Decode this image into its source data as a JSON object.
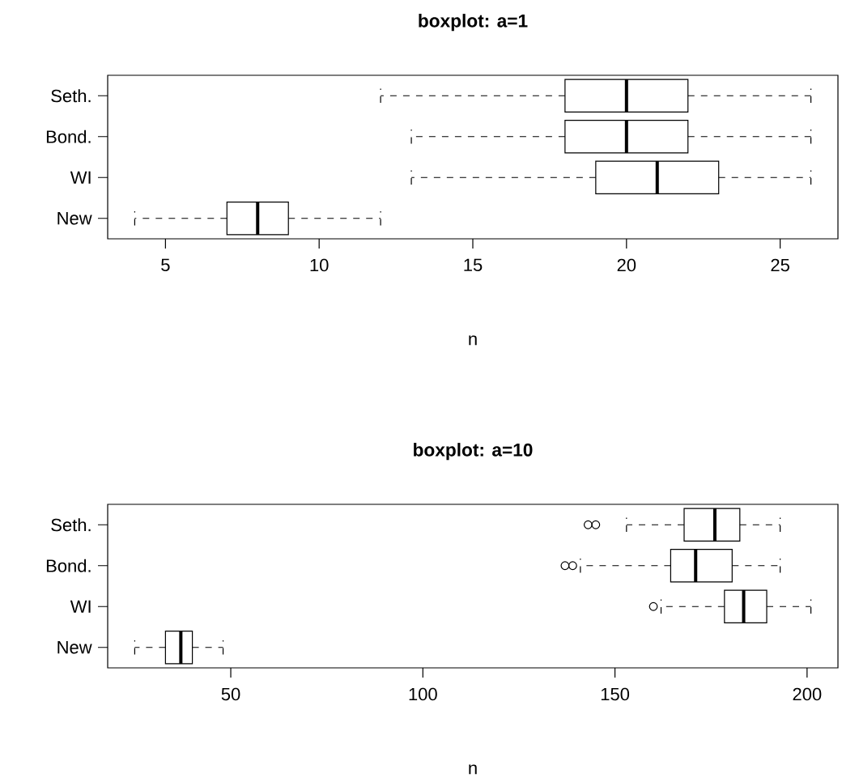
{
  "chart_data": [
    {
      "type": "box",
      "title": "boxplot: a=1",
      "xlabel": "n",
      "orientation": "horizontal",
      "categories": [
        "Seth.",
        "Bond.",
        "WI",
        "New"
      ],
      "boxes": [
        {
          "low": 12,
          "q1": 18,
          "median": 20,
          "q3": 22,
          "high": 26
        },
        {
          "low": 13,
          "q1": 18,
          "median": 20,
          "q3": 22,
          "high": 26
        },
        {
          "low": 13,
          "q1": 19,
          "median": 21,
          "q3": 23,
          "high": 26
        },
        {
          "low": 4,
          "q1": 7,
          "median": 8,
          "q3": 9,
          "high": 12
        }
      ],
      "xlim": [
        3.12,
        26.88
      ],
      "xticks": [
        5,
        10,
        15,
        20,
        25
      ]
    },
    {
      "type": "box",
      "title": "boxplot: a=10",
      "xlabel": "n",
      "orientation": "horizontal",
      "categories": [
        "Seth.",
        "Bond.",
        "WI",
        "New"
      ],
      "boxes": [
        {
          "low": 153,
          "q1": 168,
          "median": 176,
          "q3": 182.5,
          "high": 193,
          "outliers": [
            143,
            145
          ]
        },
        {
          "low": 141,
          "q1": 164.5,
          "median": 171,
          "q3": 180.5,
          "high": 193,
          "outliers": [
            137,
            139
          ]
        },
        {
          "low": 162,
          "q1": 178.5,
          "median": 183.5,
          "q3": 189.5,
          "high": 201,
          "outliers": [
            160
          ]
        },
        {
          "low": 25,
          "q1": 33,
          "median": 37,
          "q3": 40,
          "high": 48
        }
      ],
      "xlim": [
        17.96,
        208.04
      ],
      "xticks": [
        50,
        100,
        150,
        200
      ]
    }
  ]
}
